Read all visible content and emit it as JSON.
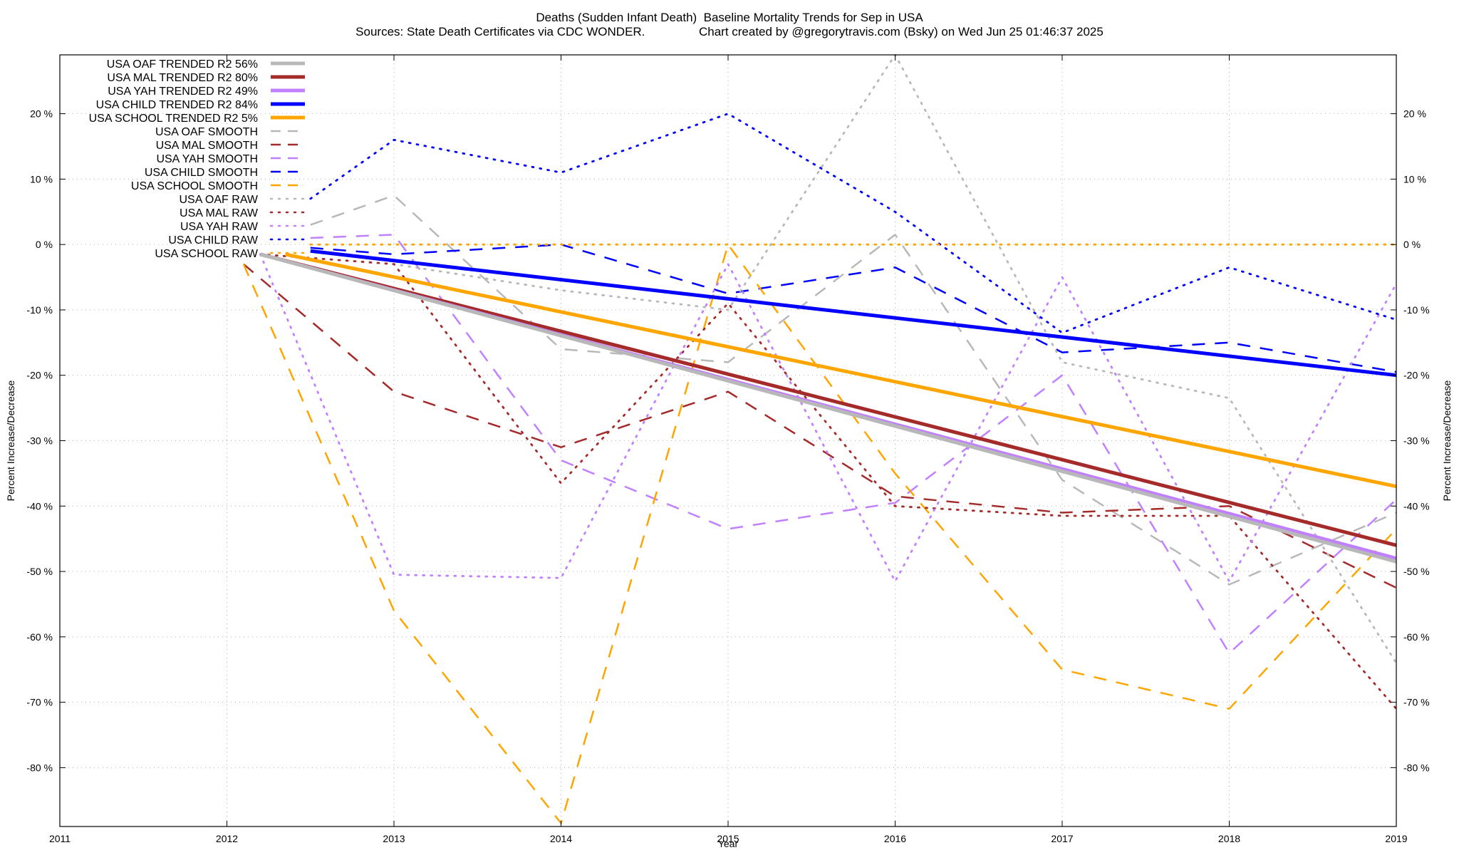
{
  "header": {
    "title": "Deaths (Sudden Infant Death)  Baseline Mortality Trends for Sep in USA",
    "subtitle": "Sources: State Death Certificates via CDC WONDER.                Chart created by @gregorytravis.com (Bsky) on Wed Jun 25 01:46:37 2025"
  },
  "chart_data": {
    "type": "line",
    "title": "Deaths (Sudden Infant Death)  Baseline Mortality Trends for Sep in USA",
    "xlabel": "Year",
    "ylabel": "Percent Increase/Decrease",
    "y2label": "Percent Increase/Decrease",
    "xlim": [
      2011,
      2019
    ],
    "ylim": [
      -89,
      29
    ],
    "x_ticks": [
      "2011",
      "2012",
      "2013",
      "2014",
      "2015",
      "2016",
      "2017",
      "2018",
      "2019"
    ],
    "y_ticks": [
      20,
      10,
      0,
      -10,
      -20,
      -30,
      -40,
      -50,
      -60,
      -70,
      -80
    ],
    "y_tick_labels": [
      "20 %",
      "10 %",
      "0 %",
      "-10 %",
      "-20 %",
      "-30 %",
      "-40 %",
      "-50 %",
      "-60 %",
      "-70 %",
      "-80 %"
    ],
    "grid": true,
    "legend_position": "top-left",
    "series": [
      {
        "name": "USA OAF TRENDED R2  56%",
        "color": "#b8b8b8",
        "style": "solid",
        "x": [
          2012.2,
          2019
        ],
        "y": [
          -1.5,
          -48.5
        ]
      },
      {
        "name": "USA MAL TRENDED R2  80%",
        "color": "#a52a2a",
        "style": "solid",
        "x": [
          2012.2,
          2019
        ],
        "y": [
          -1.5,
          -46
        ]
      },
      {
        "name": "USA YAH TRENDED R2  49%",
        "color": "#c080ff",
        "style": "solid",
        "x": [
          2012.2,
          2019
        ],
        "y": [
          -1.5,
          -48
        ]
      },
      {
        "name": "USA CHILD TRENDED R2  84%",
        "color": "#0000ff",
        "style": "solid",
        "x": [
          2012.5,
          2019
        ],
        "y": [
          -1,
          -20
        ]
      },
      {
        "name": "USA SCHOOL TRENDED R2   5%",
        "color": "#ffa500",
        "style": "solid",
        "x": [
          2012.35,
          2019
        ],
        "y": [
          -1.5,
          -37
        ]
      },
      {
        "name": "USA OAF SMOOTH",
        "color": "#b8b8b8",
        "style": "dashed",
        "x": [
          2012.5,
          2013,
          2014,
          2015,
          2016,
          2017,
          2018,
          2019
        ],
        "y": [
          3,
          7.5,
          -16,
          -18,
          1.5,
          -36,
          -52,
          -41
        ]
      },
      {
        "name": "USA MAL SMOOTH",
        "color": "#a52a2a",
        "style": "dashed",
        "x": [
          2012.1,
          2013,
          2014,
          2015,
          2016,
          2017,
          2018,
          2019
        ],
        "y": [
          -3,
          -22.5,
          -31,
          -22.5,
          -38.5,
          -41,
          -40,
          -52.5
        ]
      },
      {
        "name": "USA YAH SMOOTH",
        "color": "#c080ff",
        "style": "dashed",
        "x": [
          2012.5,
          2013,
          2014,
          2015,
          2016,
          2017,
          2018,
          2019
        ],
        "y": [
          1,
          1.5,
          -33,
          -43.5,
          -39.5,
          -20,
          -62.5,
          -39
        ]
      },
      {
        "name": "USA CHILD SMOOTH",
        "color": "#0000ff",
        "style": "dashed",
        "x": [
          2012.5,
          2013,
          2014,
          2015,
          2016,
          2017,
          2018,
          2019
        ],
        "y": [
          -0.5,
          -1.5,
          0,
          -7.5,
          -3.5,
          -16.5,
          -15,
          -19.5
        ]
      },
      {
        "name": "USA SCHOOL SMOOTH",
        "color": "#ffa500",
        "style": "dashed",
        "x": [
          2012.1,
          2013,
          2014,
          2015,
          2016,
          2017,
          2018,
          2019
        ],
        "y": [
          -3,
          -56,
          -88.5,
          0,
          -35,
          -65,
          -71,
          -43.5
        ]
      },
      {
        "name": "USA OAF RAW",
        "color": "#b8b8b8",
        "style": "dotted",
        "x": [
          2012.2,
          2013,
          2014,
          2015,
          2016,
          2017,
          2018,
          2019
        ],
        "y": [
          -1.5,
          -3,
          -7,
          -10,
          29,
          -18,
          -23.5,
          -64
        ]
      },
      {
        "name": "USA MAL RAW",
        "color": "#a52a2a",
        "style": "dotted",
        "x": [
          2012.2,
          2013,
          2014,
          2015,
          2016,
          2017,
          2018,
          2019
        ],
        "y": [
          -1.5,
          -3,
          -36.5,
          -9,
          -40,
          -41.5,
          -41.5,
          -71
        ]
      },
      {
        "name": "USA YAH RAW",
        "color": "#c080ff",
        "style": "dotted",
        "x": [
          2012.2,
          2013,
          2014,
          2015,
          2016,
          2017,
          2018,
          2019
        ],
        "y": [
          -1.5,
          -50.5,
          -51,
          -3,
          -51.5,
          -5,
          -51.5,
          -6
        ]
      },
      {
        "name": "USA CHILD RAW",
        "color": "#0000ff",
        "style": "dotted",
        "x": [
          2012.5,
          2013,
          2014,
          2015,
          2016,
          2017,
          2018,
          2019
        ],
        "y": [
          7,
          16,
          11,
          20,
          5,
          -13.5,
          -3.5,
          -11.5
        ]
      },
      {
        "name": "USA SCHOOL RAW",
        "color": "#ffa500",
        "style": "dotted",
        "x": [
          2012.5,
          2019
        ],
        "y": [
          0,
          0
        ]
      }
    ]
  }
}
